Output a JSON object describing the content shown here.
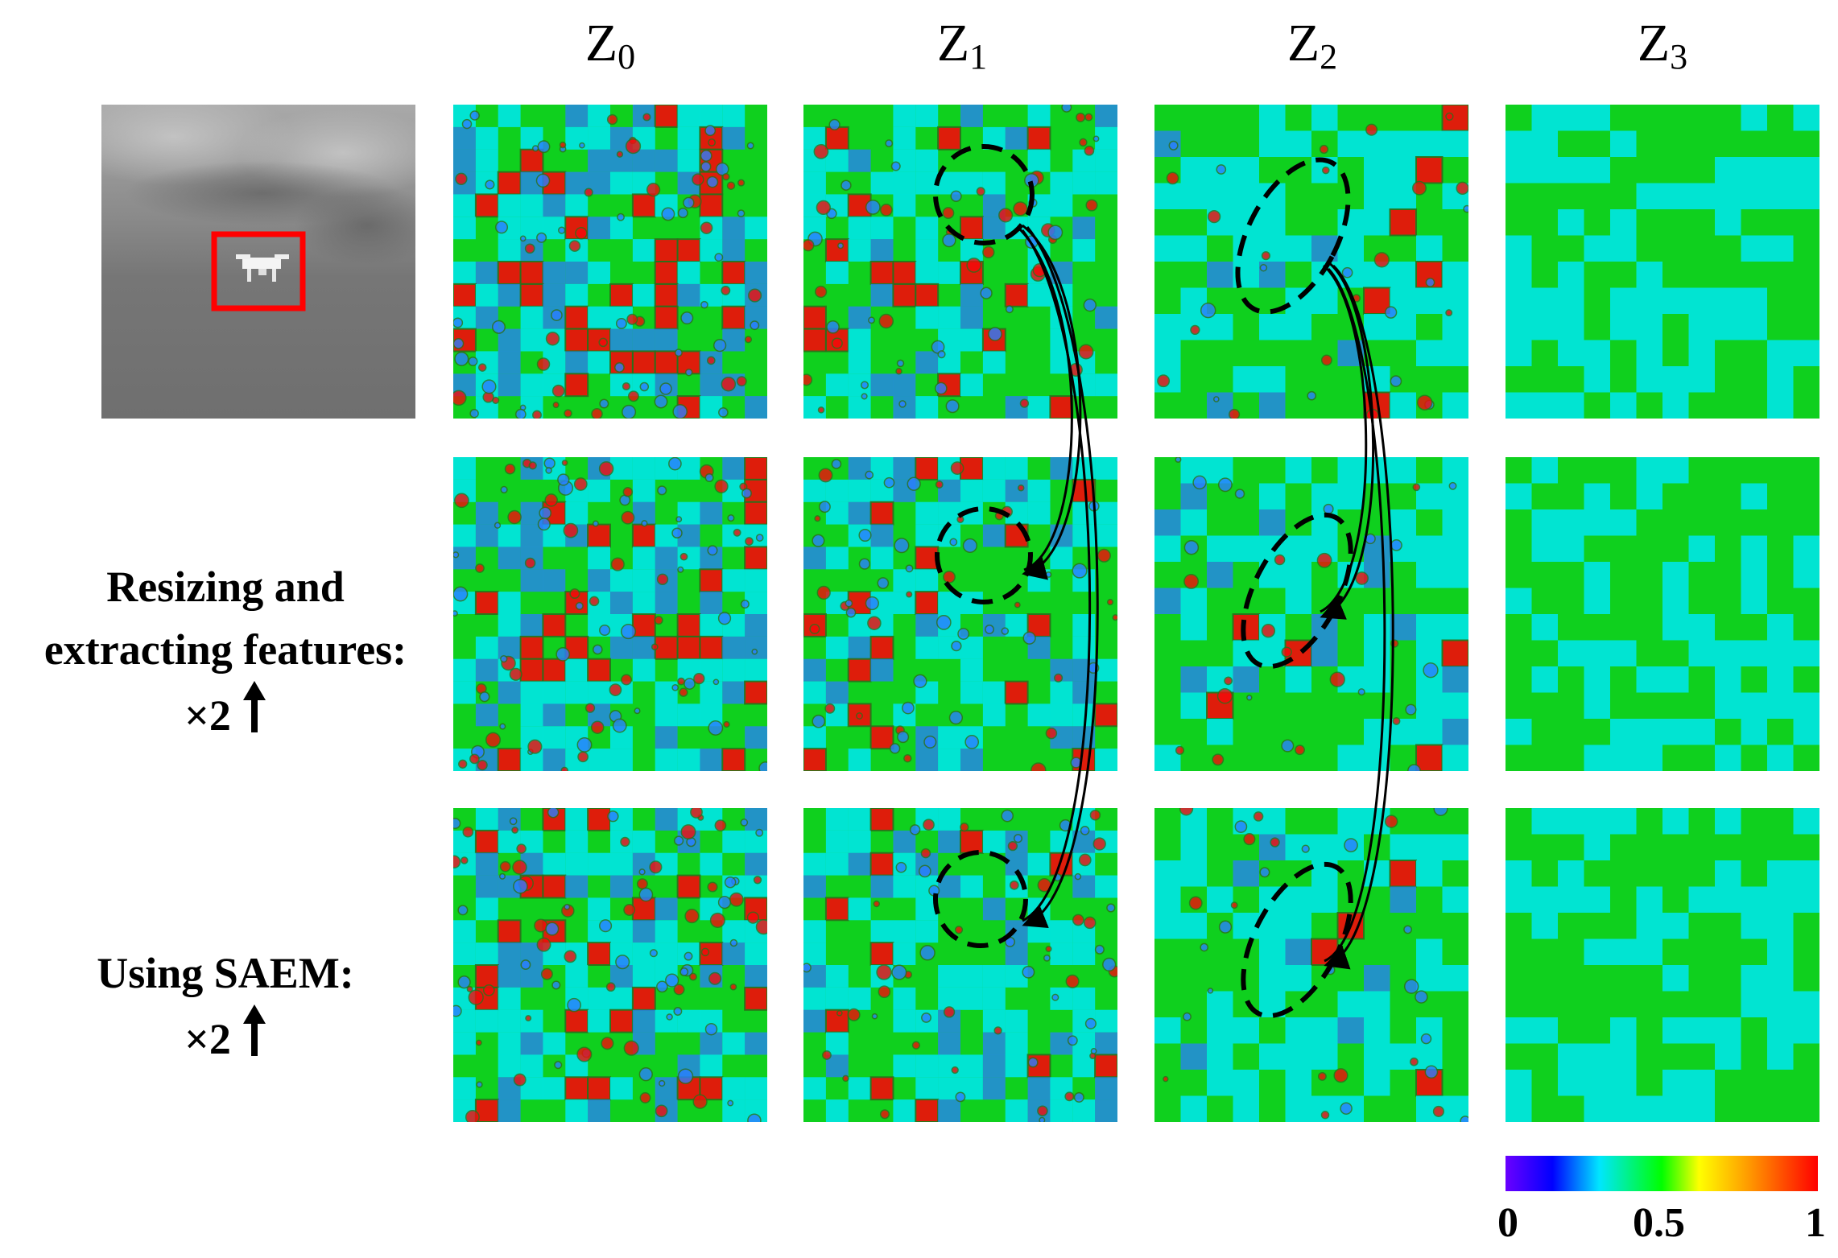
{
  "columns": [
    {
      "base": "Z",
      "sub": "0"
    },
    {
      "base": "Z",
      "sub": "1"
    },
    {
      "base": "Z",
      "sub": "2"
    },
    {
      "base": "Z",
      "sub": "3"
    }
  ],
  "row_labels": {
    "resize_line1": "Resizing and",
    "resize_line2": "extracting features:",
    "resize_line3": "×2",
    "saem_line1": "Using SAEM:",
    "saem_line2": "×2"
  },
  "colorbar": {
    "ticks": [
      "0",
      "0.5",
      "1"
    ],
    "colors": [
      "#6a00ff",
      "#0000ff",
      "#00e6ff",
      "#00ff00",
      "#ffff00",
      "#ff9900",
      "#ff0000"
    ]
  },
  "heatmap_palette": {
    "red": "#f50a0a",
    "green": "#0fd01e",
    "cyan": "#00e6e6",
    "blue": "#2a7fff",
    "contour": "#2e6e1a"
  },
  "highlight_box_color": "#ff0000"
}
